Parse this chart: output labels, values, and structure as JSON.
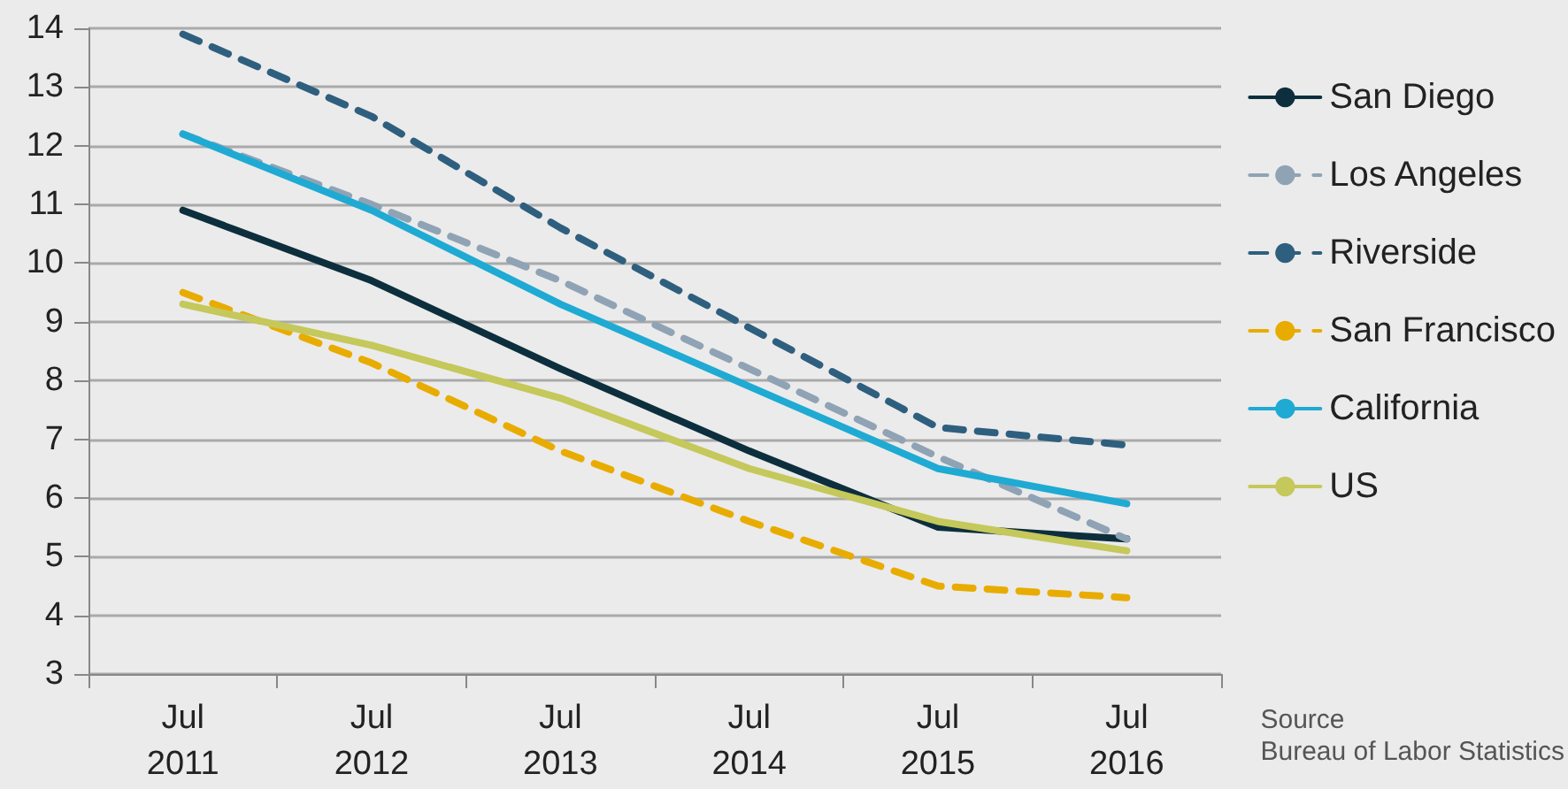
{
  "chart_data": {
    "type": "line",
    "categories": [
      "Jul\n2011",
      "Jul\n2012",
      "Jul\n2013",
      "Jul\n2014",
      "Jul\n2015",
      "Jul\n2016"
    ],
    "series": [
      {
        "name": "San Diego",
        "color": "#0d2f3d",
        "line_style": "solid",
        "values": [
          10.9,
          9.7,
          8.2,
          6.8,
          5.5,
          5.3
        ]
      },
      {
        "name": "Los Angeles",
        "color": "#8fa3b5",
        "line_style": "dashed",
        "values": [
          12.2,
          11.0,
          9.7,
          8.2,
          6.7,
          5.3
        ]
      },
      {
        "name": "Riverside",
        "color": "#2f5f7f",
        "line_style": "dashed",
        "values": [
          13.9,
          12.5,
          10.6,
          8.9,
          7.2,
          6.9
        ]
      },
      {
        "name": "San Francisco",
        "color": "#e8ac00",
        "line_style": "dashed",
        "values": [
          9.5,
          8.3,
          6.8,
          5.6,
          4.5,
          4.3
        ]
      },
      {
        "name": "California",
        "color": "#1faad3",
        "line_style": "solid",
        "values": [
          12.2,
          10.9,
          9.3,
          7.9,
          6.5,
          5.9
        ]
      },
      {
        "name": "US",
        "color": "#c5c85a",
        "line_style": "solid",
        "values": [
          9.3,
          8.6,
          7.7,
          6.5,
          5.6,
          5.1
        ]
      }
    ],
    "ylim": [
      3,
      14
    ],
    "yticks": [
      3,
      4,
      5,
      6,
      7,
      8,
      9,
      10,
      11,
      12,
      13,
      14
    ],
    "grid": "y",
    "legend": "right",
    "marker": "none",
    "annotations": [
      "Source\nBureau of Labor Statistics"
    ]
  }
}
